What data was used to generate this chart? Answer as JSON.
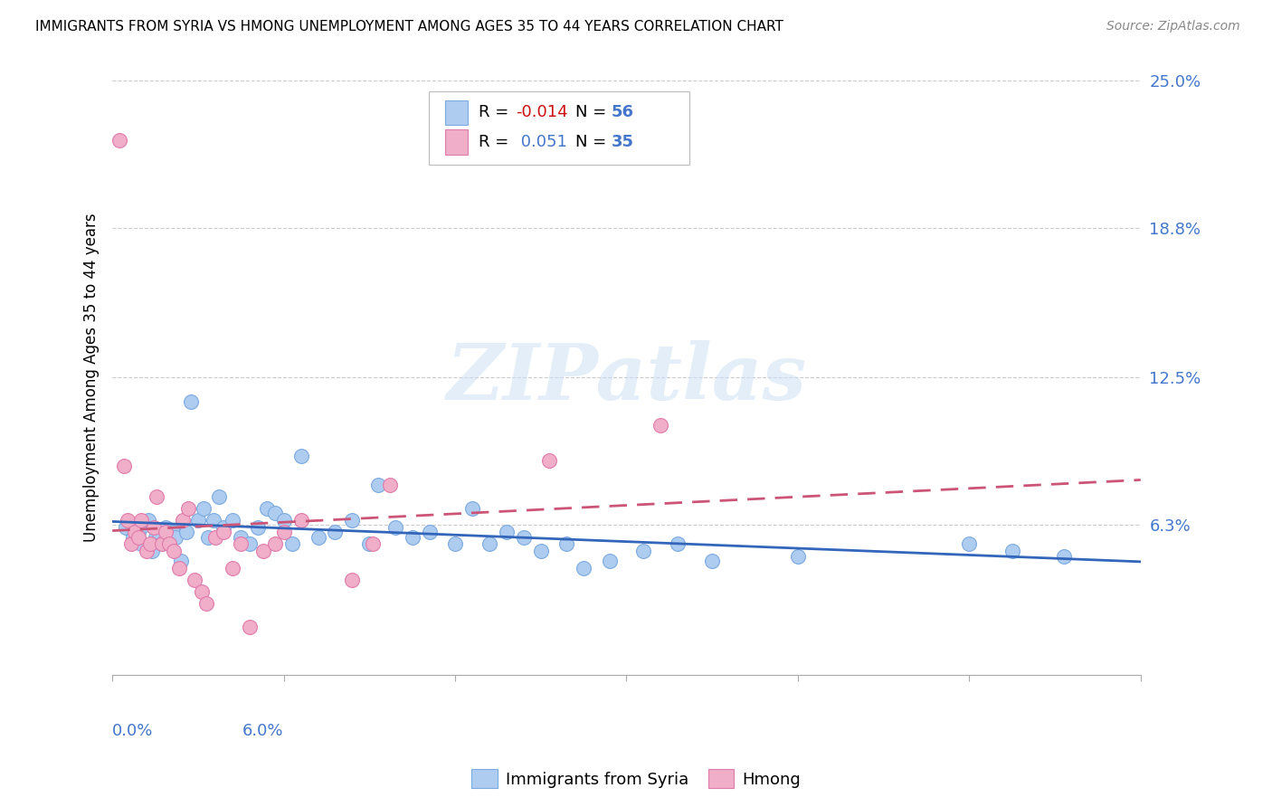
{
  "title": "IMMIGRANTS FROM SYRIA VS HMONG UNEMPLOYMENT AMONG AGES 35 TO 44 YEARS CORRELATION CHART",
  "source": "Source: ZipAtlas.com",
  "ylabel": "Unemployment Among Ages 35 to 44 years",
  "xmin": 0.0,
  "xmax": 6.0,
  "ymin": 0.0,
  "ymax": 25.0,
  "yticks": [
    0.0,
    6.3,
    12.5,
    18.8,
    25.0
  ],
  "ytick_labels": [
    "",
    "6.3%",
    "12.5%",
    "18.8%",
    "25.0%"
  ],
  "xticks": [
    0.0,
    1.0,
    2.0,
    3.0,
    4.0,
    5.0,
    6.0
  ],
  "blue_fill": "#aeccf0",
  "pink_fill": "#f0aec8",
  "blue_edge": "#7aaae0",
  "pink_edge": "#e07aaa",
  "blue_line_color": "#3366bb",
  "pink_line_color": "#cc5577",
  "tick_label_color": "#4477cc",
  "legend_label_blue": "Immigrants from Syria",
  "legend_label_pink": "Hmong",
  "watermark_text": "ZIPatlas",
  "blue_R": "-0.014",
  "blue_N": "56",
  "pink_R": "0.051",
  "pink_N": "35",
  "blue_scatter_x": [
    0.08,
    0.12,
    0.15,
    0.17,
    0.19,
    0.21,
    0.23,
    0.25,
    0.27,
    0.29,
    0.31,
    0.33,
    0.35,
    0.37,
    0.4,
    0.43,
    0.46,
    0.5,
    0.53,
    0.56,
    0.59,
    0.62,
    0.65,
    0.7,
    0.75,
    0.8,
    0.85,
    0.9,
    0.95,
    1.0,
    1.05,
    1.1,
    1.2,
    1.3,
    1.4,
    1.5,
    1.55,
    1.65,
    1.75,
    1.85,
    2.0,
    2.1,
    2.2,
    2.3,
    2.4,
    2.5,
    2.65,
    2.75,
    2.9,
    3.1,
    3.3,
    3.5,
    4.0,
    5.0,
    5.25,
    5.55
  ],
  "blue_scatter_y": [
    6.2,
    5.8,
    6.0,
    5.5,
    6.3,
    6.5,
    5.2,
    5.8,
    6.0,
    5.5,
    6.2,
    5.5,
    6.0,
    5.8,
    4.8,
    6.0,
    11.5,
    6.5,
    7.0,
    5.8,
    6.5,
    7.5,
    6.2,
    6.5,
    5.8,
    5.5,
    6.2,
    7.0,
    6.8,
    6.5,
    5.5,
    9.2,
    5.8,
    6.0,
    6.5,
    5.5,
    8.0,
    6.2,
    5.8,
    6.0,
    5.5,
    7.0,
    5.5,
    6.0,
    5.8,
    5.2,
    5.5,
    4.5,
    4.8,
    5.2,
    5.5,
    4.8,
    5.0,
    5.5,
    5.2,
    5.0
  ],
  "pink_scatter_x": [
    0.04,
    0.07,
    0.09,
    0.11,
    0.13,
    0.15,
    0.17,
    0.2,
    0.22,
    0.24,
    0.26,
    0.29,
    0.31,
    0.33,
    0.36,
    0.39,
    0.41,
    0.44,
    0.48,
    0.52,
    0.55,
    0.6,
    0.65,
    0.7,
    0.75,
    0.8,
    0.88,
    0.95,
    1.0,
    1.1,
    1.4,
    1.52,
    1.62,
    2.55,
    3.2
  ],
  "pink_scatter_y": [
    22.5,
    8.8,
    6.5,
    5.5,
    6.0,
    5.8,
    6.5,
    5.2,
    5.5,
    6.2,
    7.5,
    5.5,
    6.0,
    5.5,
    5.2,
    4.5,
    6.5,
    7.0,
    4.0,
    3.5,
    3.0,
    5.8,
    6.0,
    4.5,
    5.5,
    2.0,
    5.2,
    5.5,
    6.0,
    6.5,
    4.0,
    5.5,
    8.0,
    9.0,
    10.5
  ]
}
